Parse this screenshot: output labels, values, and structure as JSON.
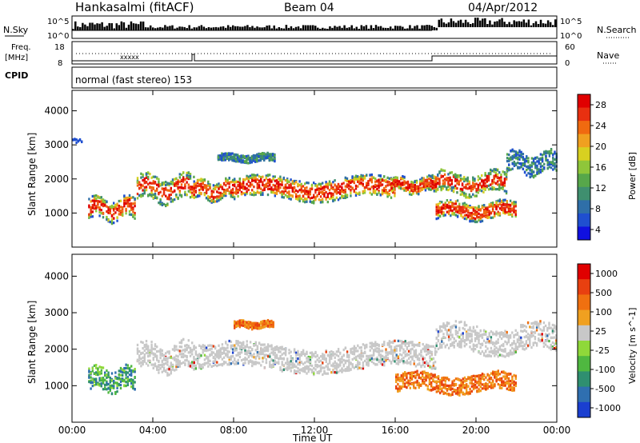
{
  "header": {
    "station": "Hankasalmi (fitACF)",
    "beam": "Beam 04",
    "date": "04/Apr/2012"
  },
  "side_labels": {
    "nsky": "N.Sky",
    "freq_top": "Freq.",
    "freq_unit": "[MHz]",
    "cpid": "CPID",
    "nsearch": "N.Search",
    "nave": "Nave"
  },
  "cpid_text": "normal (fast stereo) 153",
  "colors": {
    "power_scale": [
      "#1010e0",
      "#1f4fd0",
      "#2f6fa8",
      "#3f8f6f",
      "#57a74a",
      "#8fc63a",
      "#d8d020",
      "#f0a020",
      "#f06a10",
      "#e83010",
      "#e00000"
    ],
    "velocity_scale": [
      "#1a3fd0",
      "#2f6fb0",
      "#2f8f70",
      "#4fb840",
      "#8fd83a",
      "#c8c8c8",
      "#f0a020",
      "#f07010",
      "#e84010",
      "#e00000"
    ],
    "ground_grey": "#c8c8c8"
  },
  "chart_data": [
    {
      "type": "line",
      "title": "N.Sky / N.Search",
      "ylabel_left": "N.Sky",
      "ylabel_right": "N.Search",
      "left_ticks": [
        "10^5",
        "10^0"
      ],
      "right_ticks": [
        "10^5",
        "10^0"
      ]
    },
    {
      "type": "line",
      "ylabel_left": "Freq. [MHz]",
      "ylabel_right": "Nave",
      "left_ticks": [
        "18",
        "8"
      ],
      "right_ticks": [
        "60",
        "0"
      ]
    },
    {
      "type": "heatmap",
      "title": "Power",
      "ylabel": "Slant Range [km]",
      "yticks": [
        "4000",
        "3000",
        "2000",
        "1000"
      ],
      "ylim": [
        0,
        4600
      ],
      "colorbar_label": "Power [dB]",
      "colorbar_ticks": [
        "28",
        "24",
        "20",
        "16",
        "12",
        "8",
        "4"
      ],
      "bands": [
        {
          "t0": 0.0,
          "t1": 0.5,
          "r": 3150,
          "w": 80,
          "kind": "sparse"
        },
        {
          "t0": 0.8,
          "t1": 3.1,
          "r": 1150,
          "w": 500,
          "kind": "strong"
        },
        {
          "t0": 3.2,
          "t1": 6.0,
          "r": 1750,
          "w": 600,
          "kind": "mixed"
        },
        {
          "t0": 6.0,
          "t1": 8.0,
          "r": 1700,
          "w": 450,
          "kind": "strong"
        },
        {
          "t0": 8.0,
          "t1": 16.0,
          "r": 1750,
          "w": 500,
          "kind": "strong"
        },
        {
          "t0": 7.2,
          "t1": 10.0,
          "r": 2650,
          "w": 180,
          "kind": "weak"
        },
        {
          "t0": 15.8,
          "t1": 18.0,
          "r": 1850,
          "w": 350,
          "kind": "strong"
        },
        {
          "t0": 17.8,
          "t1": 21.5,
          "r": 1900,
          "w": 500,
          "kind": "mixed"
        },
        {
          "t0": 18.0,
          "t1": 22.0,
          "r": 1100,
          "w": 400,
          "kind": "strong"
        },
        {
          "t0": 21.5,
          "t1": 24.0,
          "r": 2500,
          "w": 500,
          "kind": "weak"
        }
      ]
    },
    {
      "type": "heatmap",
      "title": "Velocity",
      "ylabel": "Slant Range [km]",
      "xlabel": "Time UT",
      "xticks": [
        "00:00",
        "04:00",
        "08:00",
        "12:00",
        "16:00",
        "20:00",
        "00:00"
      ],
      "yticks": [
        "4000",
        "3000",
        "2000",
        "1000"
      ],
      "ylim": [
        0,
        4600
      ],
      "colorbar_label": "Velocity [m s^-1]",
      "colorbar_ticks": [
        "1000",
        "500",
        "100",
        "25",
        "-25",
        "-100",
        "-500",
        "-1000"
      ],
      "bands": [
        {
          "t0": 0.8,
          "t1": 3.1,
          "r": 1200,
          "w": 500,
          "kind": "neg"
        },
        {
          "t0": 3.2,
          "t1": 6.0,
          "r": 1800,
          "w": 600,
          "kind": "ground"
        },
        {
          "t0": 6.0,
          "t1": 18.0,
          "r": 1800,
          "w": 550,
          "kind": "ground"
        },
        {
          "t0": 8.0,
          "t1": 10.0,
          "r": 2700,
          "w": 150,
          "kind": "pos"
        },
        {
          "t0": 16.0,
          "t1": 22.0,
          "r": 1100,
          "w": 400,
          "kind": "pos"
        },
        {
          "t0": 18.0,
          "t1": 24.0,
          "r": 2300,
          "w": 600,
          "kind": "ground"
        }
      ]
    }
  ]
}
